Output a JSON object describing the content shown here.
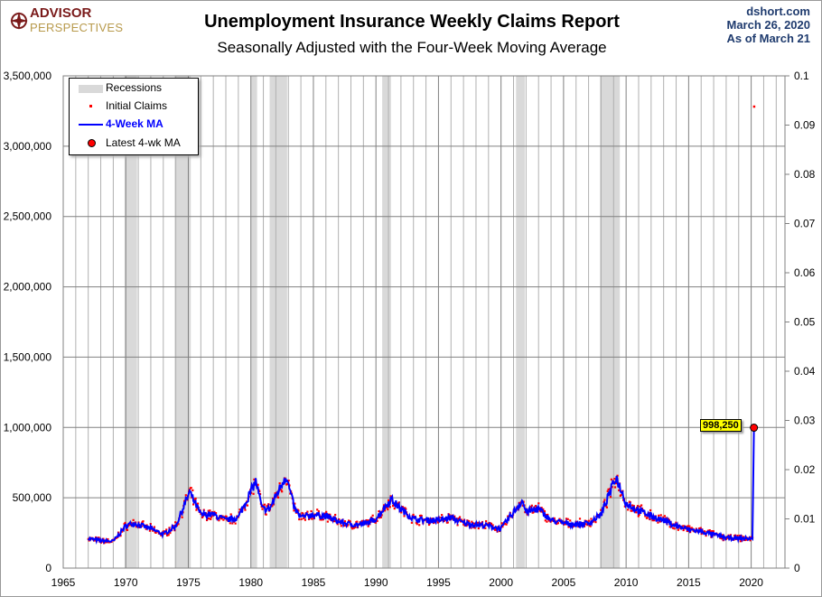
{
  "header": {
    "title": "Unemployment Insurance Weekly Claims Report",
    "subtitle": "Seasonally Adjusted with the Four-Week Moving Average",
    "source": "dshort.com",
    "date": "March 26, 2020",
    "as_of": "As of March 21",
    "logo_line1": "ADVISOR",
    "logo_line2": "PERSPECTIVES"
  },
  "chart_data": {
    "type": "line",
    "title": "Unemployment Insurance Weekly Claims Report",
    "subtitle": "Seasonally Adjusted with the Four-Week Moving Average",
    "xlim": [
      1965,
      2022.7
    ],
    "ylim": [
      0,
      3500000
    ],
    "y2lim": [
      0,
      0.1
    ],
    "x_ticks": [
      "1965",
      "1970",
      "1975",
      "1980",
      "1985",
      "1990",
      "1995",
      "2000",
      "2005",
      "2010",
      "2015",
      "2020"
    ],
    "y_ticks": [
      "0",
      "500,000",
      "1,000,000",
      "1,500,000",
      "2,000,000",
      "2,500,000",
      "3,000,000",
      "3,500,000"
    ],
    "y2_ticks": [
      "0",
      "0.01",
      "0.02",
      "0.03",
      "0.04",
      "0.05",
      "0.06",
      "0.07",
      "0.08",
      "0.09",
      "0.1"
    ],
    "grid": true,
    "legend_position": "top-left",
    "legend": [
      "Recessions",
      "Initial Claims",
      "4-Week MA",
      "Latest 4-wk MA"
    ],
    "recessions": [
      [
        1969.9,
        1970.9
      ],
      [
        1973.9,
        1975.2
      ],
      [
        1980.0,
        1980.5
      ],
      [
        1981.5,
        1982.9
      ],
      [
        1990.5,
        1991.2
      ],
      [
        2001.2,
        2001.9
      ],
      [
        2007.9,
        2009.5
      ]
    ],
    "ma_4week": {
      "x": [
        1967,
        1968,
        1969,
        1970,
        1970.6,
        1971,
        1972,
        1973,
        1974,
        1975.1,
        1975.6,
        1976,
        1977,
        1978,
        1979,
        1980.4,
        1980.9,
        1981.5,
        1982.8,
        1983.5,
        1984,
        1985,
        1986,
        1987,
        1988,
        1989,
        1990,
        1991.2,
        1992,
        1993,
        1994,
        1995,
        1996,
        1997,
        1998,
        1999,
        2000,
        2001.7,
        2002,
        2003,
        2004,
        2005,
        2006,
        2007,
        2008,
        2009.2,
        2010,
        2011,
        2012,
        2013,
        2014,
        2015,
        2016,
        2017,
        2018,
        2019,
        2020.15,
        2020.22
      ],
      "y": [
        210000,
        195000,
        190000,
        300000,
        320000,
        310000,
        280000,
        240000,
        300000,
        540000,
        450000,
        380000,
        380000,
        340000,
        360000,
        620000,
        420000,
        420000,
        660000,
        420000,
        360000,
        380000,
        370000,
        330000,
        310000,
        310000,
        350000,
        490000,
        420000,
        350000,
        340000,
        340000,
        360000,
        320000,
        310000,
        300000,
        280000,
        480000,
        400000,
        420000,
        340000,
        320000,
        310000,
        320000,
        380000,
        650000,
        460000,
        410000,
        370000,
        340000,
        300000,
        275000,
        260000,
        240000,
        215000,
        212000,
        210000,
        998250
      ]
    },
    "latest_initial_claims": {
      "x": 2020.22,
      "y": 3283000
    },
    "latest_ma": {
      "x": 2020.22,
      "y": 998250,
      "label": "998,250"
    }
  }
}
